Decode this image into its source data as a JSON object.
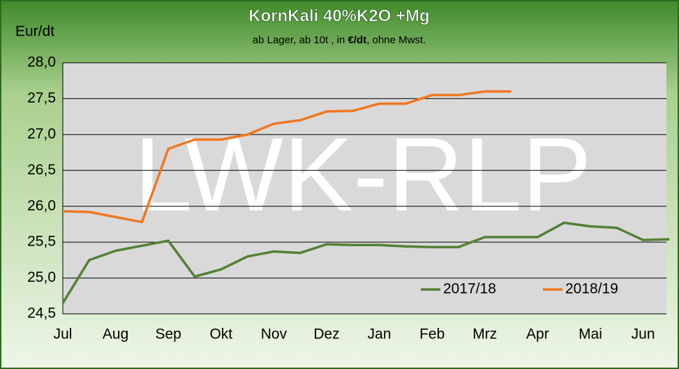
{
  "chart_data": {
    "type": "line",
    "title": "KornKali 40%K2O  +Mg",
    "subtitle": [
      "ab Lager, ab 10t , in ",
      "€/dt",
      ", ohne Mwst."
    ],
    "y_label": "Eur/dt",
    "watermark": "LWK-RLP",
    "categories": [
      "Jul",
      null,
      "Aug",
      null,
      "Sep",
      null,
      "Okt",
      null,
      "Nov",
      null,
      "Dez",
      null,
      "Jan",
      null,
      "Feb",
      null,
      "Mrz",
      null,
      "Apr",
      null,
      "Mai",
      null,
      "Jun",
      null
    ],
    "series": [
      {
        "name": "2017/18",
        "color": "#538135",
        "values": [
          24.65,
          25.25,
          25.38,
          25.45,
          25.52,
          25.02,
          25.12,
          25.3,
          25.37,
          25.35,
          25.47,
          25.46,
          25.46,
          25.44,
          25.43,
          25.43,
          25.57,
          25.57,
          25.57,
          25.77,
          25.72,
          25.7,
          25.53,
          25.54
        ]
      },
      {
        "name": "2018/19",
        "color": "#f07820",
        "values": [
          25.93,
          25.92,
          25.85,
          25.78,
          26.8,
          26.93,
          26.93,
          27.0,
          27.15,
          27.2,
          27.32,
          27.33,
          27.43,
          27.43,
          27.55,
          27.55,
          27.6,
          27.6,
          null,
          null,
          null,
          null,
          null,
          null
        ]
      }
    ],
    "ylim": [
      24.5,
      28.0
    ],
    "yticks": [
      {
        "value": 24.5,
        "label": "24,5"
      },
      {
        "value": 25.0,
        "label": "25,0"
      },
      {
        "value": 25.5,
        "label": "25,5"
      },
      {
        "value": 26.0,
        "label": "26,0"
      },
      {
        "value": 26.5,
        "label": "26,5"
      },
      {
        "value": 27.0,
        "label": "27,0"
      },
      {
        "value": 27.5,
        "label": "27,5"
      },
      {
        "value": 28.0,
        "label": "28,0"
      }
    ],
    "grid": true,
    "legend": "bottom-right"
  }
}
